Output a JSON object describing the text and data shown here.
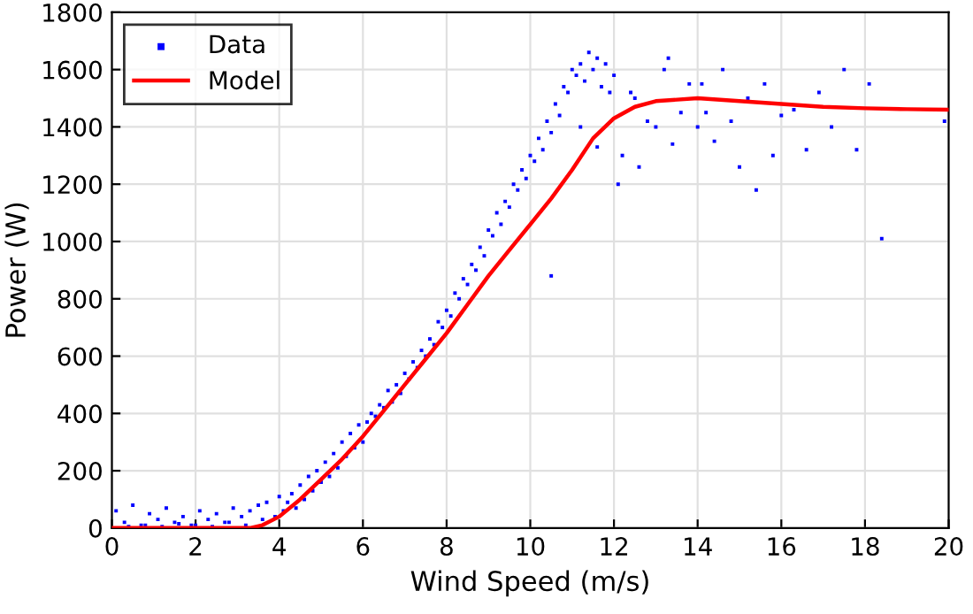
{
  "chart_data": {
    "type": "scatter",
    "xlabel": "Wind Speed (m/s)",
    "ylabel": "Power (W)",
    "xlim": [
      0,
      20
    ],
    "ylim": [
      0,
      1800
    ],
    "xticks": [
      0,
      2,
      4,
      6,
      8,
      10,
      12,
      14,
      16,
      18,
      20
    ],
    "yticks": [
      0,
      200,
      400,
      600,
      800,
      1000,
      1200,
      1400,
      1600,
      1800
    ],
    "grid": true,
    "legend": "top left",
    "series": [
      {
        "name": "Data",
        "color": "#0000ff",
        "marker": "square",
        "x": [
          0.1,
          0.3,
          0.5,
          0.7,
          0.9,
          1.1,
          1.3,
          1.5,
          1.7,
          1.9,
          2.1,
          2.3,
          2.5,
          2.7,
          2.9,
          3.1,
          3.3,
          3.5,
          3.7,
          0.4,
          0.8,
          1.2,
          1.6,
          2.0,
          2.4,
          2.8,
          3.2,
          3.6,
          3.9,
          4.0,
          4.1,
          4.2,
          4.3,
          4.4,
          4.5,
          4.6,
          4.7,
          4.8,
          4.9,
          5.0,
          5.1,
          5.2,
          5.3,
          5.4,
          5.5,
          5.6,
          5.7,
          5.8,
          5.9,
          6.0,
          6.1,
          6.2,
          6.3,
          6.4,
          6.5,
          6.6,
          6.7,
          6.8,
          6.9,
          7.0,
          7.1,
          7.2,
          7.3,
          7.4,
          7.5,
          7.6,
          7.7,
          7.8,
          7.9,
          8.0,
          8.1,
          8.2,
          8.3,
          8.4,
          8.5,
          8.6,
          8.7,
          8.8,
          8.9,
          9.0,
          9.1,
          9.2,
          9.3,
          9.4,
          9.5,
          9.6,
          9.7,
          9.8,
          9.9,
          10.0,
          10.1,
          10.2,
          10.3,
          10.4,
          10.5,
          10.6,
          10.7,
          10.8,
          10.9,
          11.0,
          11.1,
          11.2,
          11.3,
          11.4,
          11.5,
          11.6,
          11.7,
          11.8,
          11.9,
          12.0,
          12.2,
          12.4,
          12.6,
          12.8,
          13.0,
          13.2,
          13.4,
          13.6,
          13.8,
          14.0,
          14.2,
          14.4,
          14.6,
          14.8,
          15.0,
          15.2,
          15.4,
          15.6,
          15.8,
          16.0,
          16.3,
          16.6,
          16.9,
          17.2,
          17.5,
          17.8,
          18.1,
          18.4,
          19.9,
          11.2,
          11.6,
          12.1,
          12.5,
          13.3,
          14.1,
          10.5
        ],
        "values": [
          60,
          20,
          80,
          10,
          50,
          30,
          70,
          20,
          40,
          10,
          60,
          30,
          50,
          20,
          70,
          40,
          60,
          80,
          90,
          5,
          10,
          5,
          15,
          10,
          5,
          20,
          10,
          30,
          40,
          110,
          60,
          90,
          120,
          70,
          150,
          100,
          180,
          130,
          200,
          160,
          230,
          180,
          260,
          210,
          300,
          250,
          330,
          280,
          360,
          300,
          370,
          400,
          390,
          430,
          420,
          480,
          440,
          500,
          470,
          540,
          520,
          580,
          560,
          620,
          600,
          660,
          640,
          720,
          700,
          760,
          740,
          820,
          800,
          870,
          850,
          920,
          900,
          980,
          950,
          1040,
          1020,
          1100,
          1060,
          1140,
          1120,
          1200,
          1180,
          1250,
          1220,
          1300,
          1280,
          1360,
          1320,
          1420,
          1380,
          1480,
          1440,
          1540,
          1520,
          1600,
          1580,
          1620,
          1560,
          1660,
          1600,
          1640,
          1540,
          1620,
          1520,
          1580,
          1300,
          1520,
          1260,
          1420,
          1400,
          1600,
          1340,
          1450,
          1550,
          1400,
          1450,
          1350,
          1600,
          1420,
          1260,
          1500,
          1180,
          1550,
          1300,
          1440,
          1460,
          1320,
          1520,
          1400,
          1600,
          1320,
          1550,
          1010,
          1420,
          1400,
          1330,
          1200,
          1500,
          1640,
          1550,
          880
        ]
      },
      {
        "name": "Model",
        "type": "line",
        "color": "#ff0000",
        "marker": "none",
        "line_style": "solid",
        "x": [
          0,
          1,
          2,
          3,
          3.3,
          3.6,
          4,
          4.5,
          5,
          5.5,
          6,
          6.5,
          7,
          7.5,
          8,
          8.5,
          9,
          9.5,
          10,
          10.5,
          11,
          11.5,
          12,
          12.5,
          13,
          14,
          15,
          16,
          17,
          18,
          19,
          20
        ],
        "values": [
          0,
          0,
          0,
          0,
          0,
          10,
          40,
          100,
          170,
          240,
          320,
          410,
          500,
          590,
          680,
          780,
          880,
          970,
          1060,
          1150,
          1250,
          1360,
          1430,
          1470,
          1490,
          1500,
          1490,
          1480,
          1470,
          1465,
          1462,
          1460
        ]
      }
    ]
  }
}
